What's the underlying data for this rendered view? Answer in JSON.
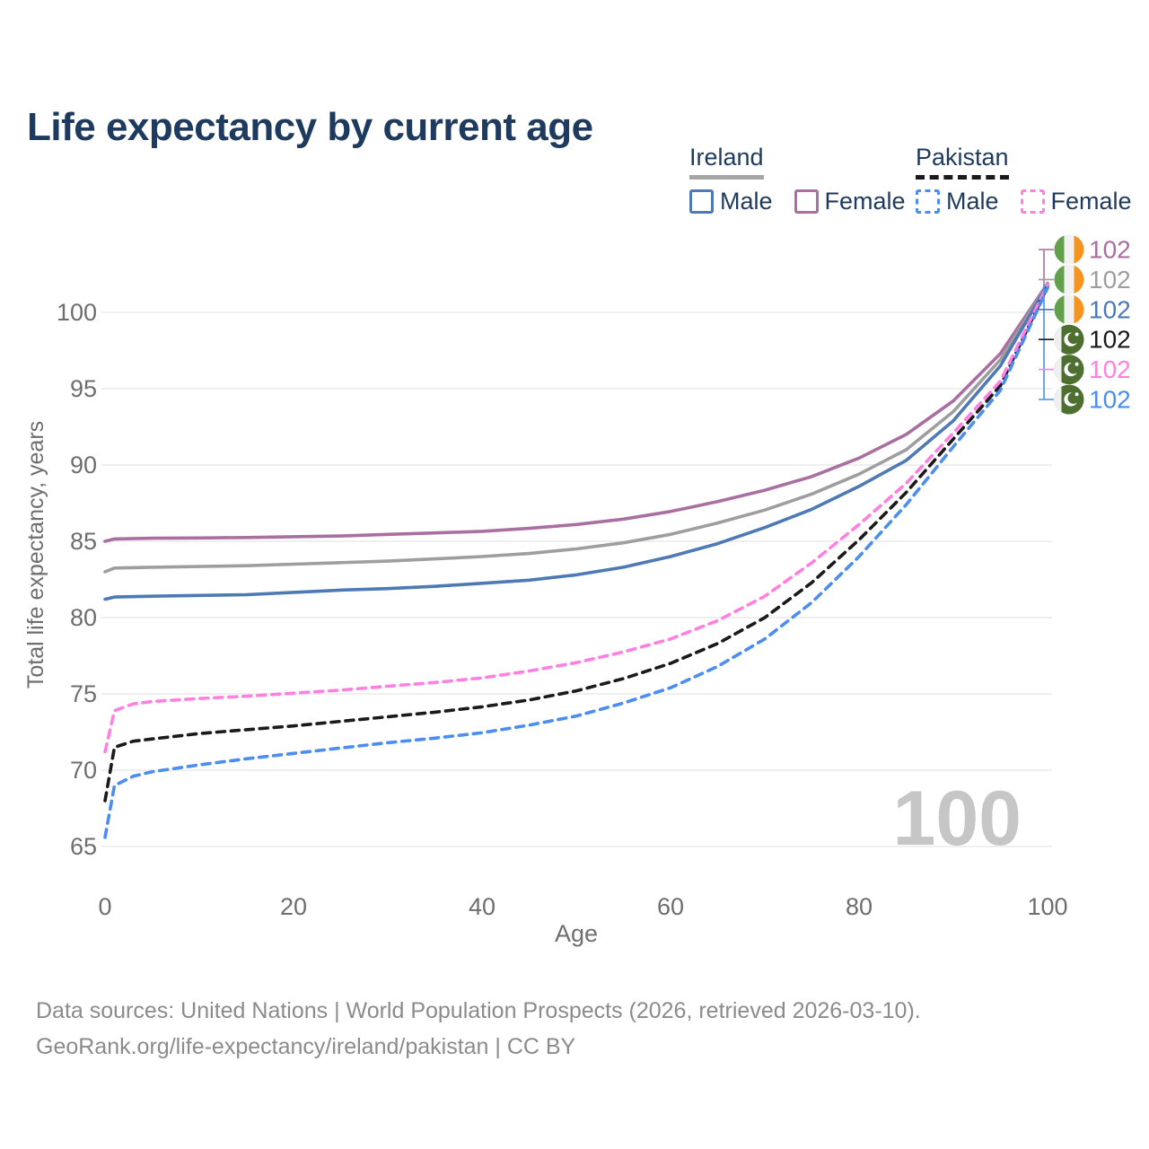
{
  "title": "Life expectancy by current age",
  "theme": {
    "title_color": "#1e3a5f",
    "axis_text_color": "#6e6e6e",
    "grid_color": "#eaeaea",
    "watermark_color": "#c6c6c6",
    "footer_color": "#8b8b8b"
  },
  "legend": {
    "groups": [
      {
        "label": "Ireland",
        "line_style": "solid",
        "underline_color": "#a6a6a6",
        "items": [
          {
            "label": "Male",
            "color": "#4d79b5",
            "dash": false
          },
          {
            "label": "Female",
            "color": "#a86fa0",
            "dash": false
          }
        ]
      },
      {
        "label": "Pakistan",
        "line_style": "dashed",
        "underline_color": "#1a1a1a",
        "items": [
          {
            "label": "Male",
            "color": "#4b8df0",
            "dash": true
          },
          {
            "label": "Female",
            "color": "#ff80e0",
            "dash": true
          }
        ]
      }
    ]
  },
  "chart_data": {
    "type": "line",
    "title": "Life expectancy by current age",
    "xlabel": "Age",
    "ylabel": "Total life expectancy, years",
    "xlim": [
      0,
      100
    ],
    "ylim": [
      63.5,
      103
    ],
    "xticks": [
      0,
      20,
      40,
      60,
      80,
      100
    ],
    "yticks": [
      65,
      70,
      75,
      80,
      85,
      90,
      95,
      100
    ],
    "grid": "horizontal",
    "legend_position": "top-right",
    "watermark_age": "100",
    "series": [
      {
        "name": "Ireland Female",
        "country": "ireland",
        "sex": "female",
        "color": "#a86fa0",
        "dash": false,
        "end_value_label": "102",
        "points": [
          [
            0,
            85.0
          ],
          [
            1,
            85.15
          ],
          [
            5,
            85.2
          ],
          [
            10,
            85.22
          ],
          [
            15,
            85.25
          ],
          [
            20,
            85.3
          ],
          [
            25,
            85.35
          ],
          [
            30,
            85.45
          ],
          [
            35,
            85.55
          ],
          [
            40,
            85.65
          ],
          [
            45,
            85.85
          ],
          [
            50,
            86.1
          ],
          [
            55,
            86.45
          ],
          [
            60,
            86.95
          ],
          [
            65,
            87.6
          ],
          [
            70,
            88.35
          ],
          [
            75,
            89.25
          ],
          [
            80,
            90.45
          ],
          [
            85,
            92.0
          ],
          [
            90,
            94.2
          ],
          [
            95,
            97.3
          ],
          [
            100,
            101.9
          ]
        ]
      },
      {
        "name": "Ireland",
        "country": "ireland",
        "sex": "both",
        "color": "#9e9e9e",
        "dash": false,
        "end_value_label": "102",
        "points": [
          [
            0,
            83.0
          ],
          [
            1,
            83.25
          ],
          [
            5,
            83.3
          ],
          [
            10,
            83.35
          ],
          [
            15,
            83.4
          ],
          [
            20,
            83.5
          ],
          [
            25,
            83.6
          ],
          [
            30,
            83.7
          ],
          [
            35,
            83.85
          ],
          [
            40,
            84.0
          ],
          [
            45,
            84.2
          ],
          [
            50,
            84.5
          ],
          [
            55,
            84.9
          ],
          [
            60,
            85.45
          ],
          [
            65,
            86.2
          ],
          [
            70,
            87.05
          ],
          [
            75,
            88.1
          ],
          [
            80,
            89.4
          ],
          [
            85,
            91.0
          ],
          [
            90,
            93.5
          ],
          [
            95,
            96.9
          ],
          [
            100,
            101.85
          ]
        ]
      },
      {
        "name": "Ireland Male",
        "country": "ireland",
        "sex": "male",
        "color": "#4d79b5",
        "dash": false,
        "end_value_label": "102",
        "points": [
          [
            0,
            81.2
          ],
          [
            1,
            81.35
          ],
          [
            5,
            81.4
          ],
          [
            10,
            81.45
          ],
          [
            15,
            81.5
          ],
          [
            20,
            81.65
          ],
          [
            25,
            81.8
          ],
          [
            30,
            81.9
          ],
          [
            35,
            82.05
          ],
          [
            40,
            82.25
          ],
          [
            45,
            82.45
          ],
          [
            50,
            82.8
          ],
          [
            55,
            83.3
          ],
          [
            60,
            84.0
          ],
          [
            65,
            84.85
          ],
          [
            70,
            85.9
          ],
          [
            75,
            87.1
          ],
          [
            80,
            88.6
          ],
          [
            85,
            90.3
          ],
          [
            90,
            92.9
          ],
          [
            95,
            96.5
          ],
          [
            100,
            101.8
          ]
        ]
      },
      {
        "name": "Pakistan",
        "country": "pakistan",
        "sex": "both",
        "color": "#1a1a1a",
        "dash": true,
        "end_value_label": "102",
        "points": [
          [
            0,
            68.0
          ],
          [
            1,
            71.5
          ],
          [
            3,
            71.9
          ],
          [
            5,
            72.05
          ],
          [
            10,
            72.4
          ],
          [
            15,
            72.65
          ],
          [
            20,
            72.9
          ],
          [
            25,
            73.2
          ],
          [
            30,
            73.5
          ],
          [
            35,
            73.8
          ],
          [
            40,
            74.15
          ],
          [
            45,
            74.6
          ],
          [
            50,
            75.2
          ],
          [
            55,
            76.0
          ],
          [
            60,
            77.0
          ],
          [
            65,
            78.3
          ],
          [
            70,
            80.0
          ],
          [
            75,
            82.3
          ],
          [
            80,
            85.1
          ],
          [
            85,
            88.2
          ],
          [
            90,
            91.7
          ],
          [
            95,
            95.2
          ],
          [
            100,
            101.7
          ]
        ]
      },
      {
        "name": "Pakistan Female",
        "country": "pakistan",
        "sex": "female",
        "color": "#ff80e0",
        "dash": true,
        "end_value_label": "102",
        "points": [
          [
            0,
            71.2
          ],
          [
            1,
            73.9
          ],
          [
            3,
            74.35
          ],
          [
            5,
            74.5
          ],
          [
            10,
            74.7
          ],
          [
            15,
            74.85
          ],
          [
            20,
            75.05
          ],
          [
            25,
            75.25
          ],
          [
            30,
            75.5
          ],
          [
            35,
            75.75
          ],
          [
            40,
            76.05
          ],
          [
            45,
            76.5
          ],
          [
            50,
            77.05
          ],
          [
            55,
            77.75
          ],
          [
            60,
            78.6
          ],
          [
            65,
            79.8
          ],
          [
            70,
            81.4
          ],
          [
            75,
            83.6
          ],
          [
            80,
            86.1
          ],
          [
            85,
            88.8
          ],
          [
            90,
            92.1
          ],
          [
            95,
            95.5
          ],
          [
            100,
            101.8
          ]
        ]
      },
      {
        "name": "Pakistan Male",
        "country": "pakistan",
        "sex": "male",
        "color": "#4b8df0",
        "dash": true,
        "end_value_label": "102",
        "points": [
          [
            0,
            65.6
          ],
          [
            1,
            69.0
          ],
          [
            3,
            69.6
          ],
          [
            5,
            69.9
          ],
          [
            10,
            70.35
          ],
          [
            15,
            70.75
          ],
          [
            20,
            71.1
          ],
          [
            25,
            71.45
          ],
          [
            30,
            71.8
          ],
          [
            35,
            72.1
          ],
          [
            40,
            72.45
          ],
          [
            45,
            72.95
          ],
          [
            50,
            73.55
          ],
          [
            55,
            74.4
          ],
          [
            60,
            75.4
          ],
          [
            65,
            76.8
          ],
          [
            70,
            78.6
          ],
          [
            75,
            81.0
          ],
          [
            80,
            84.0
          ],
          [
            85,
            87.4
          ],
          [
            90,
            91.2
          ],
          [
            95,
            94.9
          ],
          [
            100,
            101.6
          ]
        ]
      }
    ],
    "flag_colors": {
      "ireland_green": "#63a04c",
      "ireland_white": "#f2f2f2",
      "ireland_orange": "#f79420",
      "pakistan_green": "#4d6f30",
      "pakistan_white": "#f0f0f0"
    }
  },
  "footer": {
    "line1": "Data sources: United Nations | World Population Prospects (2026, retrieved 2026-03-10).",
    "line2": "GeoRank.org/life-expectancy/ireland/pakistan | CC BY"
  }
}
